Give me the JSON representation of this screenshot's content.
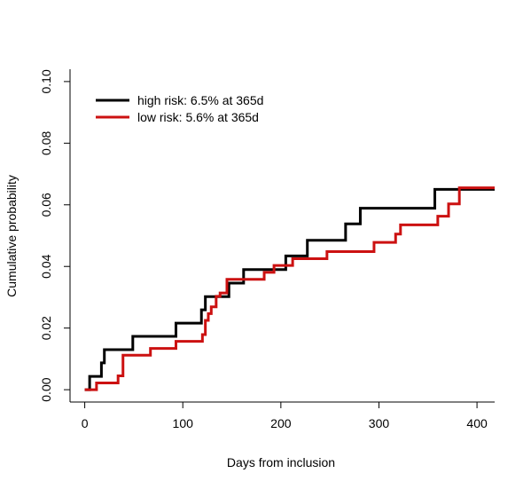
{
  "chart_data": {
    "type": "line",
    "step": true,
    "xlabel": "Days from inclusion",
    "ylabel": "Cumulative probability",
    "xlim": [
      -15,
      418
    ],
    "ylim": [
      -0.004,
      0.104
    ],
    "x_ticks": [
      {
        "value": 0,
        "label": "0"
      },
      {
        "value": 100,
        "label": "100"
      },
      {
        "value": 200,
        "label": "200"
      },
      {
        "value": 300,
        "label": "300"
      },
      {
        "value": 400,
        "label": "400"
      }
    ],
    "y_ticks": [
      {
        "value": 0,
        "label": "0.00"
      },
      {
        "value": 0.02,
        "label": "0.02"
      },
      {
        "value": 0.04,
        "label": "0.04"
      },
      {
        "value": 0.06,
        "label": "0.06"
      },
      {
        "value": 0.08,
        "label": "0.08"
      },
      {
        "value": 0.1,
        "label": "0.10"
      }
    ],
    "legend_position": "top-left",
    "series": [
      {
        "name": "high risk: 6.5% at 365d",
        "color": "#000000",
        "x": [
          0,
          5,
          17,
          20,
          49,
          93,
          119,
          123,
          147,
          162,
          205,
          227,
          266,
          281,
          357,
          418
        ],
        "y": [
          0,
          0.0043,
          0.0087,
          0.013,
          0.0173,
          0.0216,
          0.0259,
          0.0302,
          0.0346,
          0.039,
          0.0434,
          0.0485,
          0.0538,
          0.0589,
          0.065,
          0.065
        ]
      },
      {
        "name": "low risk: 5.6% at 365d",
        "color": "#cc1111",
        "x": [
          0,
          12,
          34,
          39,
          67,
          93,
          120,
          123,
          126,
          129,
          134,
          138,
          145,
          183,
          193,
          212,
          247,
          295,
          317,
          322,
          360,
          371,
          382,
          418
        ],
        "y": [
          0,
          0.0022,
          0.0045,
          0.0112,
          0.0134,
          0.0157,
          0.0179,
          0.0225,
          0.0247,
          0.0269,
          0.0303,
          0.0314,
          0.0358,
          0.0381,
          0.0403,
          0.0425,
          0.0448,
          0.0478,
          0.0505,
          0.0535,
          0.0563,
          0.0603,
          0.0655,
          0.0655
        ]
      }
    ]
  }
}
